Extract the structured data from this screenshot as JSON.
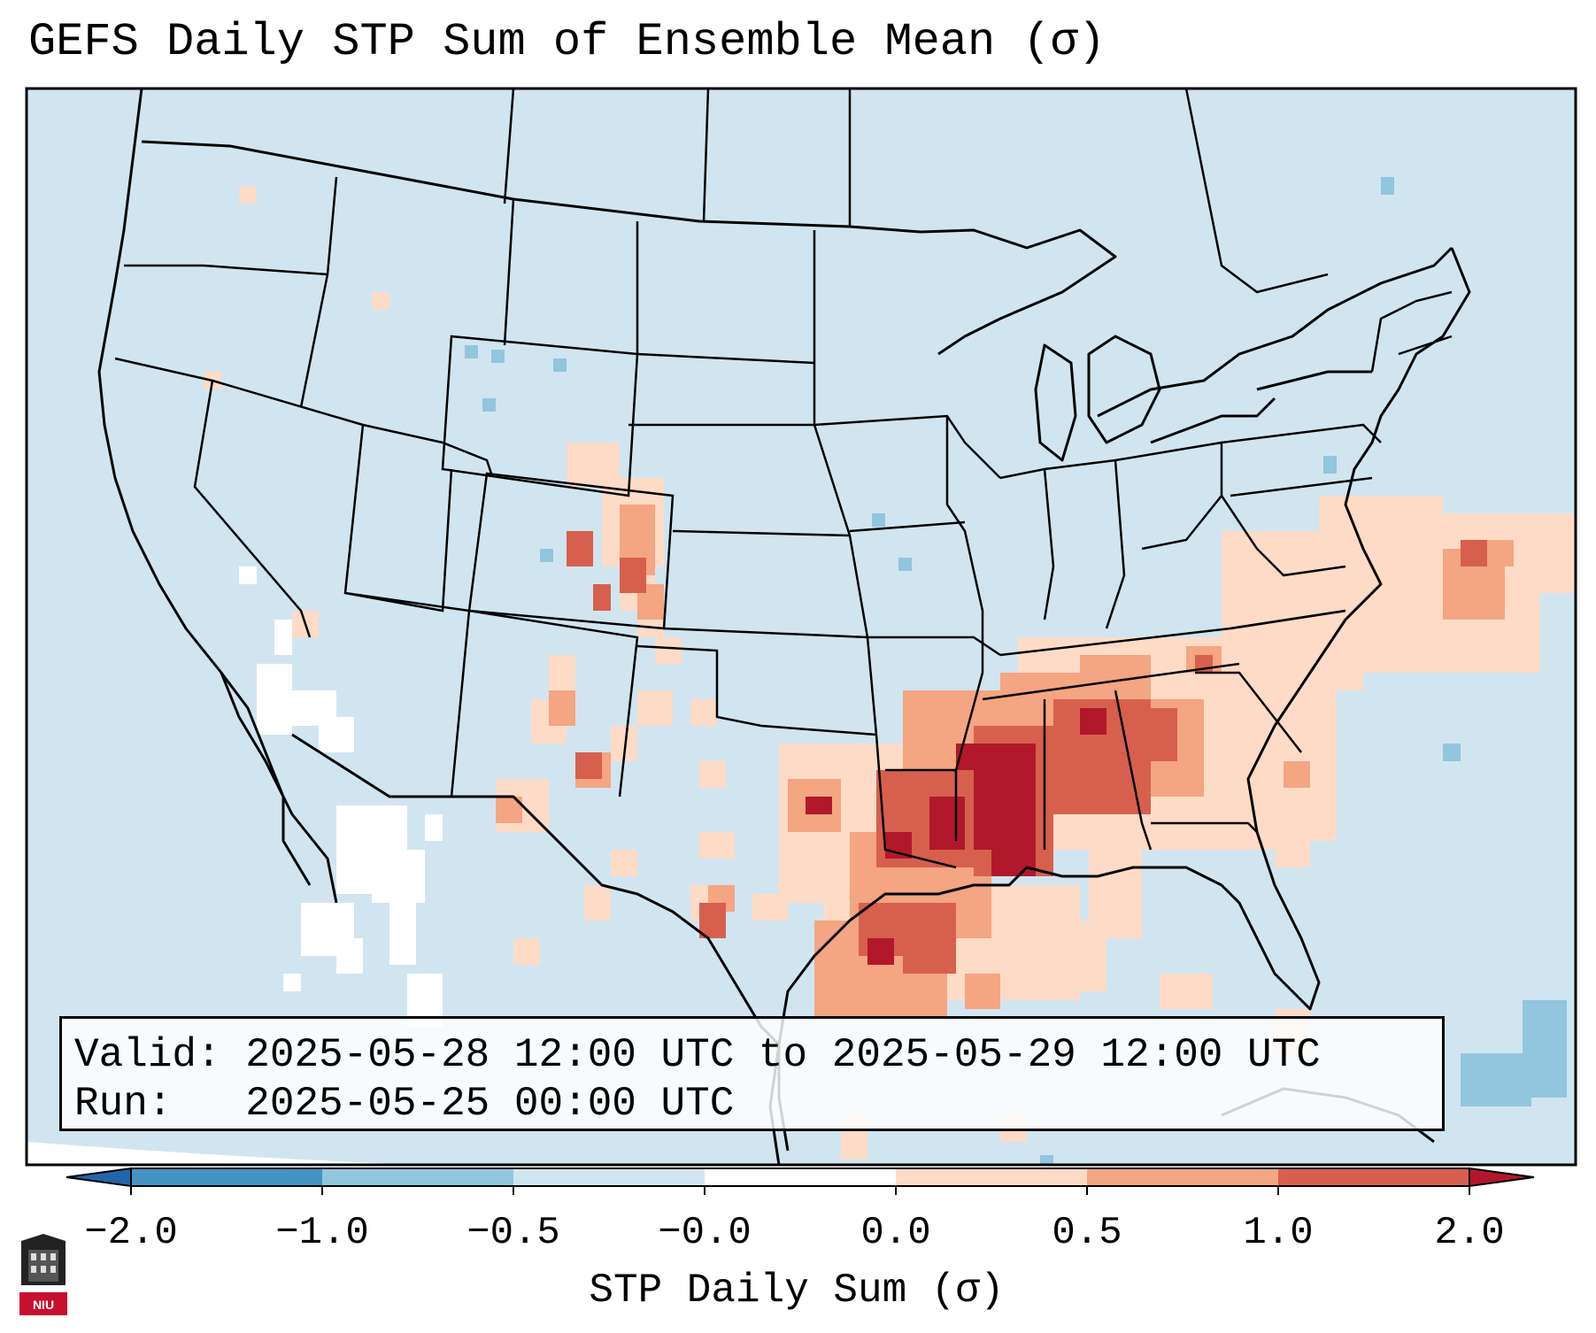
{
  "title": "GEFS Daily STP Sum of Ensemble Mean (σ)",
  "valid_label": "Valid: 2025-05-28 12:00 UTC to 2025-05-29 12:00 UTC",
  "run_label": "Run:   2025-05-25 00:00 UTC",
  "colorbar": {
    "label": "STP Daily Sum (σ)",
    "ticks": [
      "−2.0",
      "−1.0",
      "−0.5",
      "−0.0",
      "0.0",
      "0.5",
      "1.0",
      "2.0"
    ],
    "bins": [
      {
        "range": "-2.0 to -1.0",
        "color": "#4393c3"
      },
      {
        "range": "-1.0 to -0.5",
        "color": "#92c5de"
      },
      {
        "range": "-0.5 to -0.0",
        "color": "#d1e5f0"
      },
      {
        "range": "-0.0 to 0.0",
        "color": "#ffffff"
      },
      {
        "range": "0.0 to 0.5",
        "color": "#fddbc7"
      },
      {
        "range": "0.5 to 1.0",
        "color": "#f4a582"
      },
      {
        "range": "1.0 to 2.0",
        "color": "#d6604d"
      }
    ],
    "under_color": "#2166ac",
    "over_color": "#b2182b"
  },
  "logo_text": "NIU",
  "map_colors": {
    "background": "#d1e5f0",
    "borders": "#000000"
  }
}
